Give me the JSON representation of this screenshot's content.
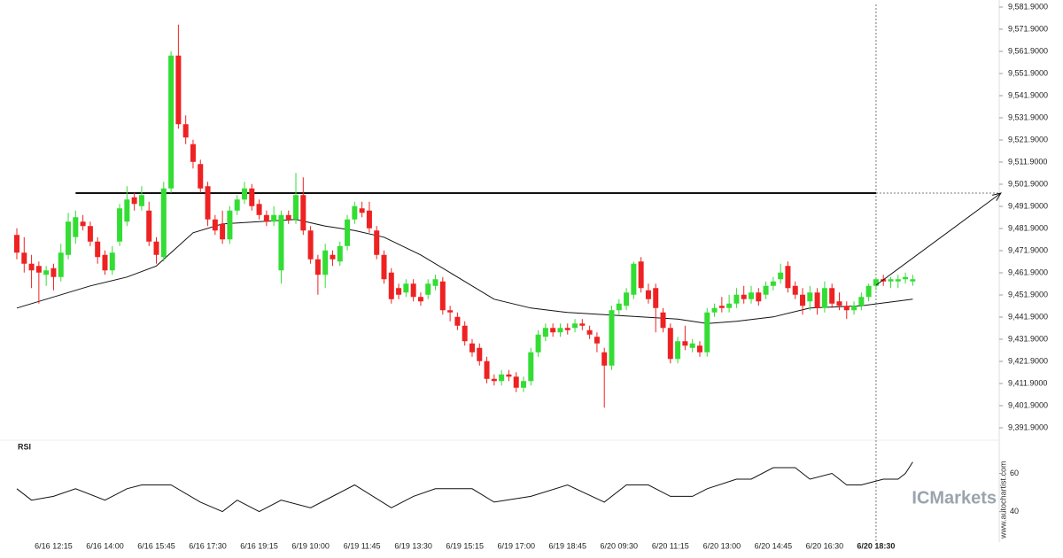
{
  "chart_data": {
    "type": "candlestick",
    "up_color": "#33dd33",
    "down_color": "#ee2222",
    "candles": [
      [
        9479,
        9482,
        9468,
        9471
      ],
      [
        9471,
        9478,
        9462,
        9466
      ],
      [
        9466,
        9470,
        9455,
        9463
      ],
      [
        9465,
        9467,
        9448,
        9462
      ],
      [
        9461,
        9465,
        9456,
        9463
      ],
      [
        9464,
        9466,
        9454,
        9460
      ],
      [
        9460,
        9475,
        9458,
        9471
      ],
      [
        9470,
        9489,
        9468,
        9485
      ],
      [
        9478,
        9490,
        9475,
        9487
      ],
      [
        9485,
        9488,
        9481,
        9483
      ],
      [
        9483,
        9485,
        9474,
        9476
      ],
      [
        9476,
        9478,
        9466,
        9469
      ],
      [
        9470,
        9472,
        9461,
        9463
      ],
      [
        9463,
        9474,
        9461,
        9471
      ],
      [
        9476,
        9493,
        9474,
        9491
      ],
      [
        9485,
        9501,
        9483,
        9495
      ],
      [
        9496,
        9498,
        9490,
        9493
      ],
      [
        9492,
        9501,
        9490,
        9497
      ],
      [
        9490,
        9494,
        9474,
        9476
      ],
      [
        9476,
        9478,
        9466,
        9470
      ],
      [
        9469,
        9503,
        9467,
        9500
      ],
      [
        9500,
        9562,
        9498,
        9560
      ],
      [
        9560,
        9574,
        9527,
        9529
      ],
      [
        9529,
        9533,
        9520,
        9523
      ],
      [
        9520,
        9522,
        9509,
        9512
      ],
      [
        9511,
        9513,
        9498,
        9500
      ],
      [
        9501,
        9503,
        9483,
        9486
      ],
      [
        9486,
        9488,
        9479,
        9481
      ],
      [
        9484,
        9490,
        9475,
        9477
      ],
      [
        9477,
        9492,
        9475,
        9490
      ],
      [
        9490,
        9497,
        9488,
        9495
      ],
      [
        9495,
        9503,
        9493,
        9500
      ],
      [
        9500,
        9502,
        9490,
        9492
      ],
      [
        9493,
        9495,
        9486,
        9488
      ],
      [
        9488,
        9490,
        9483,
        9485
      ],
      [
        9485,
        9492,
        9483,
        9488
      ],
      [
        9463,
        9490,
        9457,
        9488
      ],
      [
        9488,
        9490,
        9484,
        9486
      ],
      [
        9486,
        9507,
        9484,
        9497
      ],
      [
        9497,
        9505,
        9479,
        9481
      ],
      [
        9481,
        9483,
        9466,
        9468
      ],
      [
        9468,
        9470,
        9452,
        9461
      ],
      [
        9461,
        9475,
        9455,
        9472
      ],
      [
        9470,
        9472,
        9465,
        9468
      ],
      [
        9467,
        9476,
        9465,
        9474
      ],
      [
        9474,
        9488,
        9472,
        9486
      ],
      [
        9486,
        9494,
        9484,
        9492
      ],
      [
        9491,
        9494,
        9487,
        9489
      ],
      [
        9490,
        9494,
        9480,
        9482
      ],
      [
        9481,
        9483,
        9468,
        9470
      ],
      [
        9470,
        9472,
        9457,
        9459
      ],
      [
        9462,
        9464,
        9448,
        9450
      ],
      [
        9455,
        9457,
        9450,
        9452
      ],
      [
        9453,
        9459,
        9451,
        9457
      ],
      [
        9457,
        9459,
        9449,
        9451
      ],
      [
        9451,
        9453,
        9447,
        9449
      ],
      [
        9452,
        9459,
        9450,
        9457
      ],
      [
        9456,
        9461,
        9454,
        9459
      ],
      [
        9458,
        9460,
        9443,
        9445
      ],
      [
        9445,
        9447,
        9440,
        9444
      ],
      [
        9442,
        9444,
        9436,
        9438
      ],
      [
        9438,
        9440,
        9429,
        9431
      ],
      [
        9430,
        9432,
        9424,
        9426
      ],
      [
        9428,
        9430,
        9420,
        9422
      ],
      [
        9422,
        9424,
        9412,
        9414
      ],
      [
        9414,
        9416,
        9411,
        9413
      ],
      [
        9413,
        9418,
        9411,
        9416
      ],
      [
        9416,
        9418,
        9413,
        9415
      ],
      [
        9415,
        9417,
        9408,
        9410
      ],
      [
        9410,
        9415,
        9408,
        9413
      ],
      [
        9413,
        9428,
        9411,
        9426
      ],
      [
        9426,
        9436,
        9424,
        9434
      ],
      [
        9433,
        9439,
        9431,
        9437
      ],
      [
        9437,
        9439,
        9433,
        9435
      ],
      [
        9435,
        9439,
        9433,
        9437
      ],
      [
        9437,
        9439,
        9434,
        9436
      ],
      [
        9437,
        9441,
        9435,
        9439
      ],
      [
        9439,
        9441,
        9436,
        9438
      ],
      [
        9436,
        9438,
        9432,
        9434
      ],
      [
        9433,
        9435,
        9426,
        9430
      ],
      [
        9426,
        9428,
        9401,
        9420
      ],
      [
        9420,
        9447,
        9418,
        9445
      ],
      [
        9445,
        9450,
        9443,
        9448
      ],
      [
        9447,
        9455,
        9445,
        9453
      ],
      [
        9452,
        9467,
        9450,
        9466
      ],
      [
        9467,
        9469,
        9453,
        9455
      ],
      [
        9454,
        9457,
        9448,
        9450
      ],
      [
        9455,
        9457,
        9435,
        9446
      ],
      [
        9444,
        9446,
        9435,
        9437
      ],
      [
        9437,
        9439,
        9421,
        9423
      ],
      [
        9423,
        9433,
        9421,
        9431
      ],
      [
        9431,
        9438,
        9427,
        9429
      ],
      [
        9428,
        9432,
        9426,
        9430
      ],
      [
        9429,
        9431,
        9424,
        9426
      ],
      [
        9426,
        9446,
        9424,
        9444
      ],
      [
        9444,
        9448,
        9442,
        9446
      ],
      [
        9447,
        9451,
        9444,
        9446
      ],
      [
        9446,
        9452,
        9444,
        9448
      ],
      [
        9448,
        9455,
        9446,
        9452
      ],
      [
        9452,
        9456,
        9448,
        9450
      ],
      [
        9450,
        9456,
        9448,
        9453
      ],
      [
        9453,
        9455,
        9447,
        9449
      ],
      [
        9452,
        9458,
        9450,
        9456
      ],
      [
        9456,
        9460,
        9454,
        9458
      ],
      [
        9459,
        9466,
        9457,
        9462
      ],
      [
        9465,
        9467,
        9453,
        9455
      ],
      [
        9456,
        9458,
        9450,
        9452
      ],
      [
        9452,
        9455,
        9443,
        9447
      ],
      [
        9449,
        9456,
        9445,
        9453
      ],
      [
        9453,
        9455,
        9443,
        9446
      ],
      [
        9446,
        9458,
        9444,
        9455
      ],
      [
        9455,
        9457,
        9446,
        9448
      ],
      [
        9449,
        9453,
        9445,
        9447
      ],
      [
        9447,
        9449,
        9441,
        9445
      ],
      [
        9445,
        9449,
        9443,
        9447
      ],
      [
        9447,
        9453,
        9445,
        9451
      ],
      [
        9451,
        9457,
        9449,
        9456
      ],
      [
        9456,
        9460,
        9454,
        9459
      ],
      [
        9459,
        9461,
        9456,
        9458
      ],
      [
        9458,
        9460,
        9455,
        9459
      ],
      [
        9458,
        9461,
        9455,
        9459
      ],
      [
        9459,
        9462,
        9457,
        9460
      ],
      [
        9458,
        9461,
        9456,
        9459
      ]
    ],
    "ma": {
      "x": [
        0,
        10,
        15,
        19,
        24,
        28,
        33,
        38,
        42,
        46,
        50,
        55,
        60,
        65,
        70,
        75,
        80,
        85,
        90,
        94,
        98,
        103,
        108,
        115,
        122
      ],
      "values": [
        9446,
        9456,
        9460,
        9465,
        9480,
        9484,
        9485,
        9486,
        9483,
        9481,
        9478,
        9470,
        9460,
        9450,
        9446,
        9444,
        9443,
        9442,
        9441,
        9439,
        9440,
        9442,
        9446,
        9447,
        9450
      ]
    },
    "ylim": [
      9389.1,
      9585.1
    ],
    "yticks": [
      {
        "value": 9391.9,
        "label": "9,391.9000"
      },
      {
        "value": 9401.9,
        "label": "9,401.9000"
      },
      {
        "value": 9411.9,
        "label": "9,411.9000"
      },
      {
        "value": 9421.9,
        "label": "9,421.9000"
      },
      {
        "value": 9431.9,
        "label": "9,431.9000"
      },
      {
        "value": 9441.9,
        "label": "9,441.9000"
      },
      {
        "value": 9451.9,
        "label": "9,451.9000"
      },
      {
        "value": 9461.9,
        "label": "9,461.9000"
      },
      {
        "value": 9471.9,
        "label": "9,471.9000"
      },
      {
        "value": 9481.9,
        "label": "9,481.9000"
      },
      {
        "value": 9491.9,
        "label": "9,491.9000"
      },
      {
        "value": 9501.9,
        "label": "9,501.9000"
      },
      {
        "value": 9511.9,
        "label": "9,511.9000"
      },
      {
        "value": 9521.9,
        "label": "9,521.9000"
      },
      {
        "value": 9531.9,
        "label": "9,531.9000"
      },
      {
        "value": 9541.9,
        "label": "9,541.9000"
      },
      {
        "value": 9551.9,
        "label": "9,551.9000"
      },
      {
        "value": 9561.9,
        "label": "9,561.9000"
      },
      {
        "value": 9571.9,
        "label": "9,571.9000"
      },
      {
        "value": 9581.9,
        "label": "9,581.9000"
      }
    ],
    "xlabels": [
      {
        "index": 5,
        "label": "6/16 12:15"
      },
      {
        "index": 12,
        "label": "6/16 14:00"
      },
      {
        "index": 19,
        "label": "6/16 15:45"
      },
      {
        "index": 26,
        "label": "6/16 17:30"
      },
      {
        "index": 33,
        "label": "6/16 19:15"
      },
      {
        "index": 40,
        "label": "6/19 10:00"
      },
      {
        "index": 47,
        "label": "6/19 11:45"
      },
      {
        "index": 54,
        "label": "6/19 13:30"
      },
      {
        "index": 61,
        "label": "6/19 15:15"
      },
      {
        "index": 68,
        "label": "6/19 17:00"
      },
      {
        "index": 75,
        "label": "6/19 18:45"
      },
      {
        "index": 82,
        "label": "6/20 09:30"
      },
      {
        "index": 89,
        "label": "6/20 11:15"
      },
      {
        "index": 96,
        "label": "6/20 13:00"
      },
      {
        "index": 103,
        "label": "6/20 14:45"
      },
      {
        "index": 110,
        "label": "6/20 16:30"
      },
      {
        "index": 117,
        "label": "6/20 18:30"
      }
    ],
    "level": {
      "value": 9497.9,
      "start": 8
    },
    "projection": {
      "from": [
        117,
        9456.3
      ],
      "to": [
        134,
        9497.9
      ]
    },
    "current_index": 117,
    "rsi": {
      "label": "RSI",
      "x": [
        0,
        2,
        5,
        8,
        12,
        15,
        17,
        21,
        25,
        28,
        30,
        33,
        36,
        40,
        46,
        51,
        54,
        57,
        62,
        65,
        70,
        75,
        80,
        83,
        86,
        89,
        92,
        94,
        98,
        100,
        103,
        106,
        108,
        111,
        113,
        115,
        118,
        120,
        121,
        122
      ],
      "values": [
        52,
        46,
        48,
        52,
        46,
        52,
        54,
        54,
        45,
        40,
        46,
        40,
        46,
        42,
        54,
        42,
        48,
        52,
        52,
        45,
        48,
        54,
        45,
        54,
        54,
        48,
        48,
        52,
        57,
        57,
        63,
        63,
        57,
        60,
        54,
        54,
        57,
        57,
        60,
        66
      ],
      "ylim": [
        25,
        76
      ],
      "yticks": [
        40,
        60
      ]
    },
    "watermark": "ICMarkets",
    "source": "www.autochartist.com"
  }
}
